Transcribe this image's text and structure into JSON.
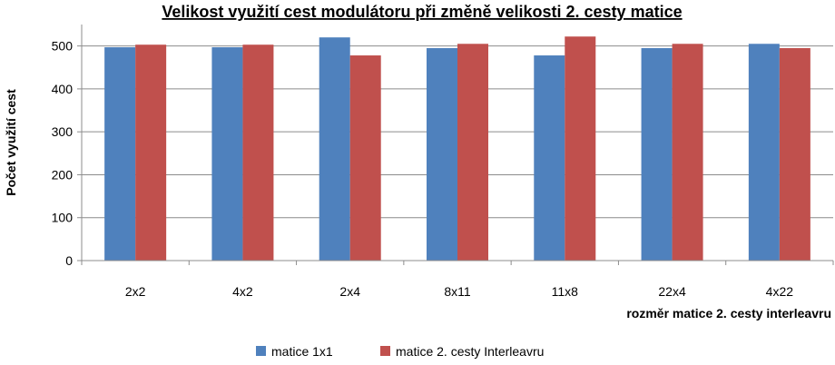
{
  "chart_data": {
    "type": "bar",
    "title": "Velikost využití cest modulátoru  při změně velikosti 2. cesty matice",
    "xlabel": "rozměr matice 2. cesty interleavru",
    "ylabel": "Počet využití cest",
    "categories": [
      "2x2",
      "4x2",
      "2x4",
      "8x11",
      "11x8",
      "22x4",
      "4x22"
    ],
    "ylim": [
      0,
      550
    ],
    "yticks": [
      0,
      100,
      200,
      300,
      400,
      500
    ],
    "grid": true,
    "legend_position": "bottom",
    "series": [
      {
        "name": "matice 1x1",
        "color": "#4F81BD",
        "values": [
          497,
          497,
          520,
          495,
          478,
          495,
          505
        ]
      },
      {
        "name": "matice 2. cesty Interleavru",
        "color": "#C0504D",
        "values": [
          503,
          503,
          478,
          505,
          522,
          505,
          495
        ]
      }
    ]
  }
}
